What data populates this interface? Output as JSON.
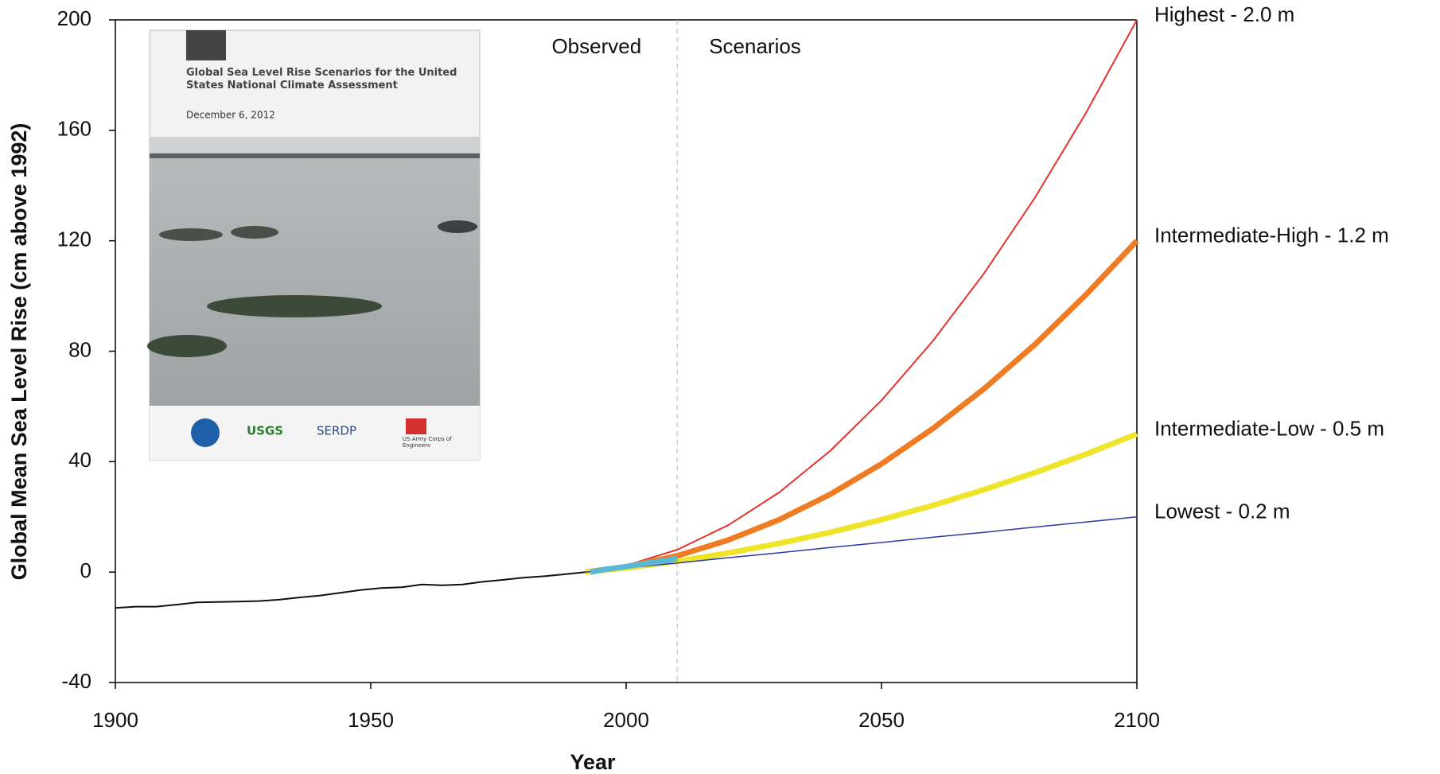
{
  "chart_data": {
    "type": "line",
    "x_label": "Year",
    "y_label": "Global Mean Sea Level Rise (cm above 1992)",
    "xlim": [
      1900,
      2100
    ],
    "xticks": [
      1900,
      1950,
      2000,
      2050,
      2100
    ],
    "ylim": [
      -40,
      200
    ],
    "yticks": [
      -40,
      0,
      40,
      80,
      120,
      160,
      200
    ],
    "annotations": [
      "Observed",
      "Scenarios"
    ],
    "divider": 2010,
    "series": [
      {
        "color": "#111111",
        "x": [
          1900,
          1904,
          1908,
          1912,
          1916,
          1920,
          1924,
          1928,
          1932,
          1936,
          1940,
          1944,
          1948,
          1952,
          1956,
          1960,
          1964,
          1968,
          1972,
          1976,
          1980,
          1984,
          1988,
          1992
        ],
        "values": [
          -13,
          -12.5,
          -12.5,
          -11.8,
          -11,
          -10.8,
          -10.7,
          -10.5,
          -10,
          -9.2,
          -8.5,
          -7.5,
          -6.5,
          -5.8,
          -5.5,
          -4.5,
          -4.8,
          -4.5,
          -3.5,
          -2.8,
          -2,
          -1.5,
          -0.8,
          0
        ]
      },
      {
        "name": "Highest - 2.0 m",
        "color": "#e8312a",
        "x": [
          1992,
          2000,
          2010,
          2020,
          2030,
          2040,
          2050,
          2060,
          2070,
          2080,
          2090,
          2100
        ],
        "values": [
          0,
          2.4,
          8.1,
          17,
          28.9,
          44,
          62.2,
          83.6,
          108,
          135.5,
          166.2,
          200
        ]
      },
      {
        "name": "Intermediate-High - 1.2 m",
        "color": "#ef7c22",
        "x": [
          1992,
          2000,
          2010,
          2020,
          2030,
          2040,
          2050,
          2060,
          2070,
          2080,
          2090,
          2100
        ],
        "values": [
          0,
          1.9,
          5.9,
          11.6,
          19,
          28.2,
          39.2,
          51.9,
          66.3,
          82.4,
          100.4,
          120
        ]
      },
      {
        "name": "Intermediate-Low - 0.5 m",
        "color": "#eee52a",
        "x": [
          1992,
          2000,
          2010,
          2020,
          2030,
          2040,
          2050,
          2060,
          2070,
          2080,
          2090,
          2100
        ],
        "values": [
          0,
          1.5,
          3.9,
          6.9,
          10.4,
          14.4,
          19,
          24.1,
          29.8,
          36,
          42.7,
          50
        ]
      },
      {
        "name": "Lowest - 0.2 m",
        "color": "#2b3a9e",
        "x": [
          1992,
          2000,
          2010,
          2020,
          2030,
          2040,
          2050,
          2060,
          2070,
          2080,
          2090,
          2100
        ],
        "values": [
          0,
          1.5,
          3.3,
          5.2,
          7,
          8.9,
          10.7,
          12.6,
          14.4,
          16.3,
          18.1,
          20
        ]
      },
      {
        "color": "#5bb8d4",
        "x": [
          1993,
          1996,
          2000,
          2004,
          2008,
          2010
        ],
        "values": [
          0,
          1,
          2,
          3.2,
          4.2,
          5
        ]
      }
    ]
  },
  "inset": {
    "title": "Global Sea Level Rise Scenarios for the United States National Climate Assessment",
    "date": "December 6, 2012",
    "logos": [
      "USGS",
      "SERDP",
      "US Army Corps of Engineers"
    ]
  }
}
